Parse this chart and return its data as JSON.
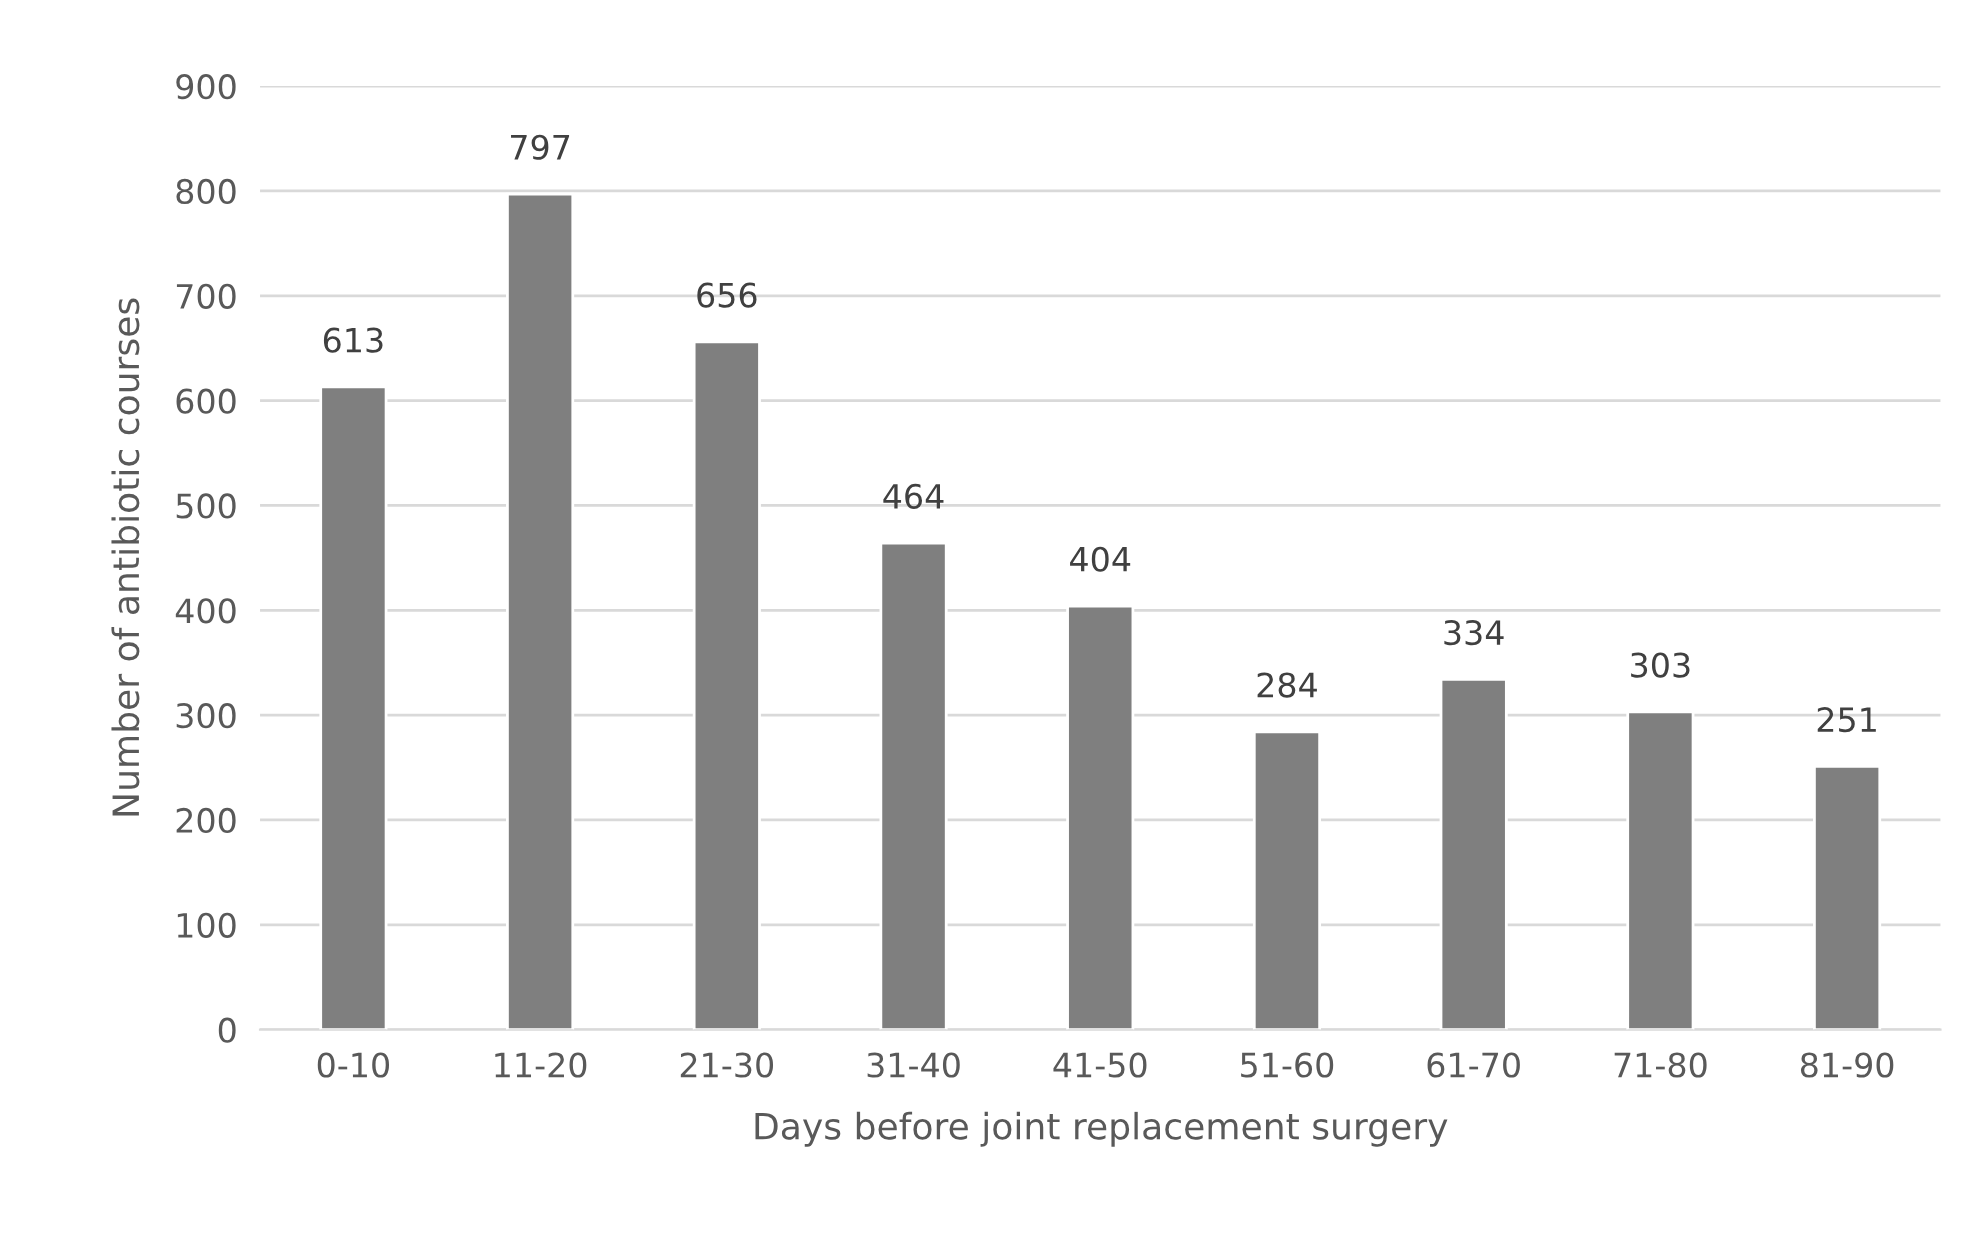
{
  "chart_data": {
    "type": "bar",
    "xlabel": "Days before joint replacement surgery",
    "ylabel": "Number of antibiotic courses",
    "categories": [
      "0-10",
      "11-20",
      "21-30",
      "31-40",
      "41-50",
      "51-60",
      "61-70",
      "71-80",
      "81-90"
    ],
    "values": [
      613,
      797,
      656,
      464,
      404,
      284,
      334,
      303,
      251
    ],
    "color": "#7f7f7f",
    "ylim": [
      0,
      900
    ],
    "yticks": [
      0,
      100,
      200,
      300,
      400,
      500,
      600,
      700,
      800,
      900
    ],
    "grid": "y",
    "data_labels": true
  }
}
